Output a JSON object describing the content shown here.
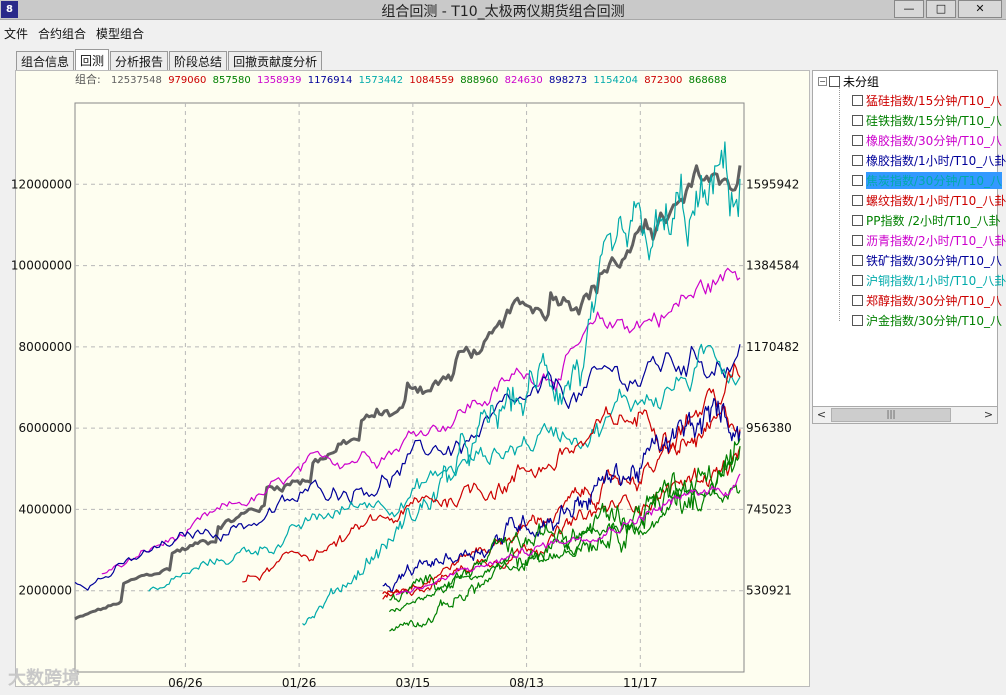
{
  "window": {
    "icon_text": "8",
    "title": "组合回测 - T10_太极两仪期货组合回测",
    "minimize": "—",
    "maximize": "□",
    "close": "✕"
  },
  "menu": [
    "文件",
    "合约组合",
    "模型组合"
  ],
  "tabs": [
    {
      "label": "组合信息",
      "active": false
    },
    {
      "label": "回测",
      "active": true
    },
    {
      "label": "分析报告",
      "active": false
    },
    {
      "label": "阶段总结",
      "active": false
    },
    {
      "label": "回撤贡献度分析",
      "active": false
    }
  ],
  "legend": {
    "prefix": "组合:",
    "items": [
      {
        "value": "12537548",
        "color": "#606060"
      },
      {
        "value": "979060",
        "color": "#cc0000"
      },
      {
        "value": "857580",
        "color": "#008000"
      },
      {
        "value": "1358939",
        "color": "#cc00cc"
      },
      {
        "value": "1176914",
        "color": "#000099"
      },
      {
        "value": "1573442",
        "color": "#00aaaa"
      },
      {
        "value": "1084559",
        "color": "#cc0000"
      },
      {
        "value": "888960",
        "color": "#008000"
      },
      {
        "value": "824630",
        "color": "#cc00cc"
      },
      {
        "value": "898273",
        "color": "#000099"
      },
      {
        "value": "1154204",
        "color": "#00aaaa"
      },
      {
        "value": "872300",
        "color": "#cc0000"
      },
      {
        "value": "868688",
        "color": "#008000"
      }
    ]
  },
  "chart_data": {
    "type": "line",
    "left_axis_ticks": [
      "12000000",
      "10000000",
      "8000000",
      "6000000",
      "4000000",
      "2000000"
    ],
    "left_axis_values": [
      12000000,
      10000000,
      8000000,
      6000000,
      4000000,
      2000000
    ],
    "left_ylim": [
      0,
      14000000
    ],
    "right_axis_ticks": [
      "1595942",
      "1384584",
      "1170482",
      "956380",
      "745023",
      "530921"
    ],
    "x_ticks": [
      "06/26",
      "01/26",
      "03/15",
      "08/13",
      "11/17"
    ],
    "grid": true,
    "series": [
      {
        "color": "#606060",
        "start": 1300000,
        "end": 12537548,
        "start_frac": 0.0,
        "noise": 0.02,
        "steps": true,
        "width": 3.0
      },
      {
        "color": "#cc00cc",
        "start": 2400000,
        "end": 9800000,
        "start_frac": 0.04,
        "noise": 0.025,
        "width": 1.2
      },
      {
        "color": "#000099",
        "start": 2200000,
        "end": 8100000,
        "start_frac": 0.0,
        "noise": 0.035,
        "width": 1.2
      },
      {
        "color": "#00aaaa",
        "start": 2000000,
        "end": 7800000,
        "start_frac": 0.11,
        "noise": 0.035,
        "width": 1.2
      },
      {
        "color": "#00aaaa",
        "start": 1200000,
        "end": 11800000,
        "start_frac": 0.34,
        "noise": 0.055,
        "width": 1.2
      },
      {
        "color": "#cc0000",
        "start": 2200000,
        "end": 7200000,
        "start_frac": 0.25,
        "noise": 0.035,
        "width": 1.2
      },
      {
        "color": "#cc0000",
        "start": 1900000,
        "end": 6100000,
        "start_frac": 0.46,
        "noise": 0.03,
        "width": 1.2
      },
      {
        "color": "#cc0000",
        "start": 1800000,
        "end": 5200000,
        "start_frac": 0.46,
        "noise": 0.03,
        "width": 1.2
      },
      {
        "color": "#000099",
        "start": 2000000,
        "end": 6300000,
        "start_frac": 0.46,
        "noise": 0.045,
        "width": 1.2
      },
      {
        "color": "#008000",
        "start": 1000000,
        "end": 5400000,
        "start_frac": 0.47,
        "noise": 0.06,
        "width": 1.2
      },
      {
        "color": "#008000",
        "start": 1800000,
        "end": 5000000,
        "start_frac": 0.47,
        "noise": 0.05,
        "width": 1.2
      },
      {
        "color": "#008000",
        "start": 1500000,
        "end": 4700000,
        "start_frac": 0.47,
        "noise": 0.03,
        "width": 1.2
      },
      {
        "color": "#cc00cc",
        "start": 1900000,
        "end": 4700000,
        "start_frac": 0.48,
        "noise": 0.02,
        "width": 1.2
      }
    ]
  },
  "tree": {
    "root_expander": "−",
    "root_label": "未分组",
    "items": [
      {
        "label": "猛硅指数/15分钟/T10_八",
        "color": "#cc0000",
        "selected": false
      },
      {
        "label": "硅铁指数/15分钟/T10_八",
        "color": "#008000",
        "selected": false
      },
      {
        "label": "橡胶指数/30分钟/T10_八",
        "color": "#cc00cc",
        "selected": false
      },
      {
        "label": "橡胶指数/1小时/T10_八卦",
        "color": "#000099",
        "selected": false
      },
      {
        "label": "焦炭指数/30分钟/T10_八",
        "color": "#00aaaa",
        "selected": true
      },
      {
        "label": "螺纹指数/1小时/T10_八卦",
        "color": "#cc0000",
        "selected": false
      },
      {
        "label": "PP指数 /2小时/T10_八卦",
        "color": "#008000",
        "selected": false
      },
      {
        "label": "沥青指数/2小时/T10_八卦",
        "color": "#cc00cc",
        "selected": false
      },
      {
        "label": "铁矿指数/30分钟/T10_八",
        "color": "#000099",
        "selected": false
      },
      {
        "label": "沪铜指数/1小时/T10_八卦",
        "color": "#00aaaa",
        "selected": false
      },
      {
        "label": "郑醇指数/30分钟/T10_八",
        "color": "#cc0000",
        "selected": false
      },
      {
        "label": "沪金指数/30分钟/T10_八",
        "color": "#008000",
        "selected": false
      }
    ]
  },
  "scrollbar": {
    "left_arrow": "<",
    "right_arrow": ">",
    "thumb_grip": "|||"
  },
  "watermark": "大数跨境"
}
